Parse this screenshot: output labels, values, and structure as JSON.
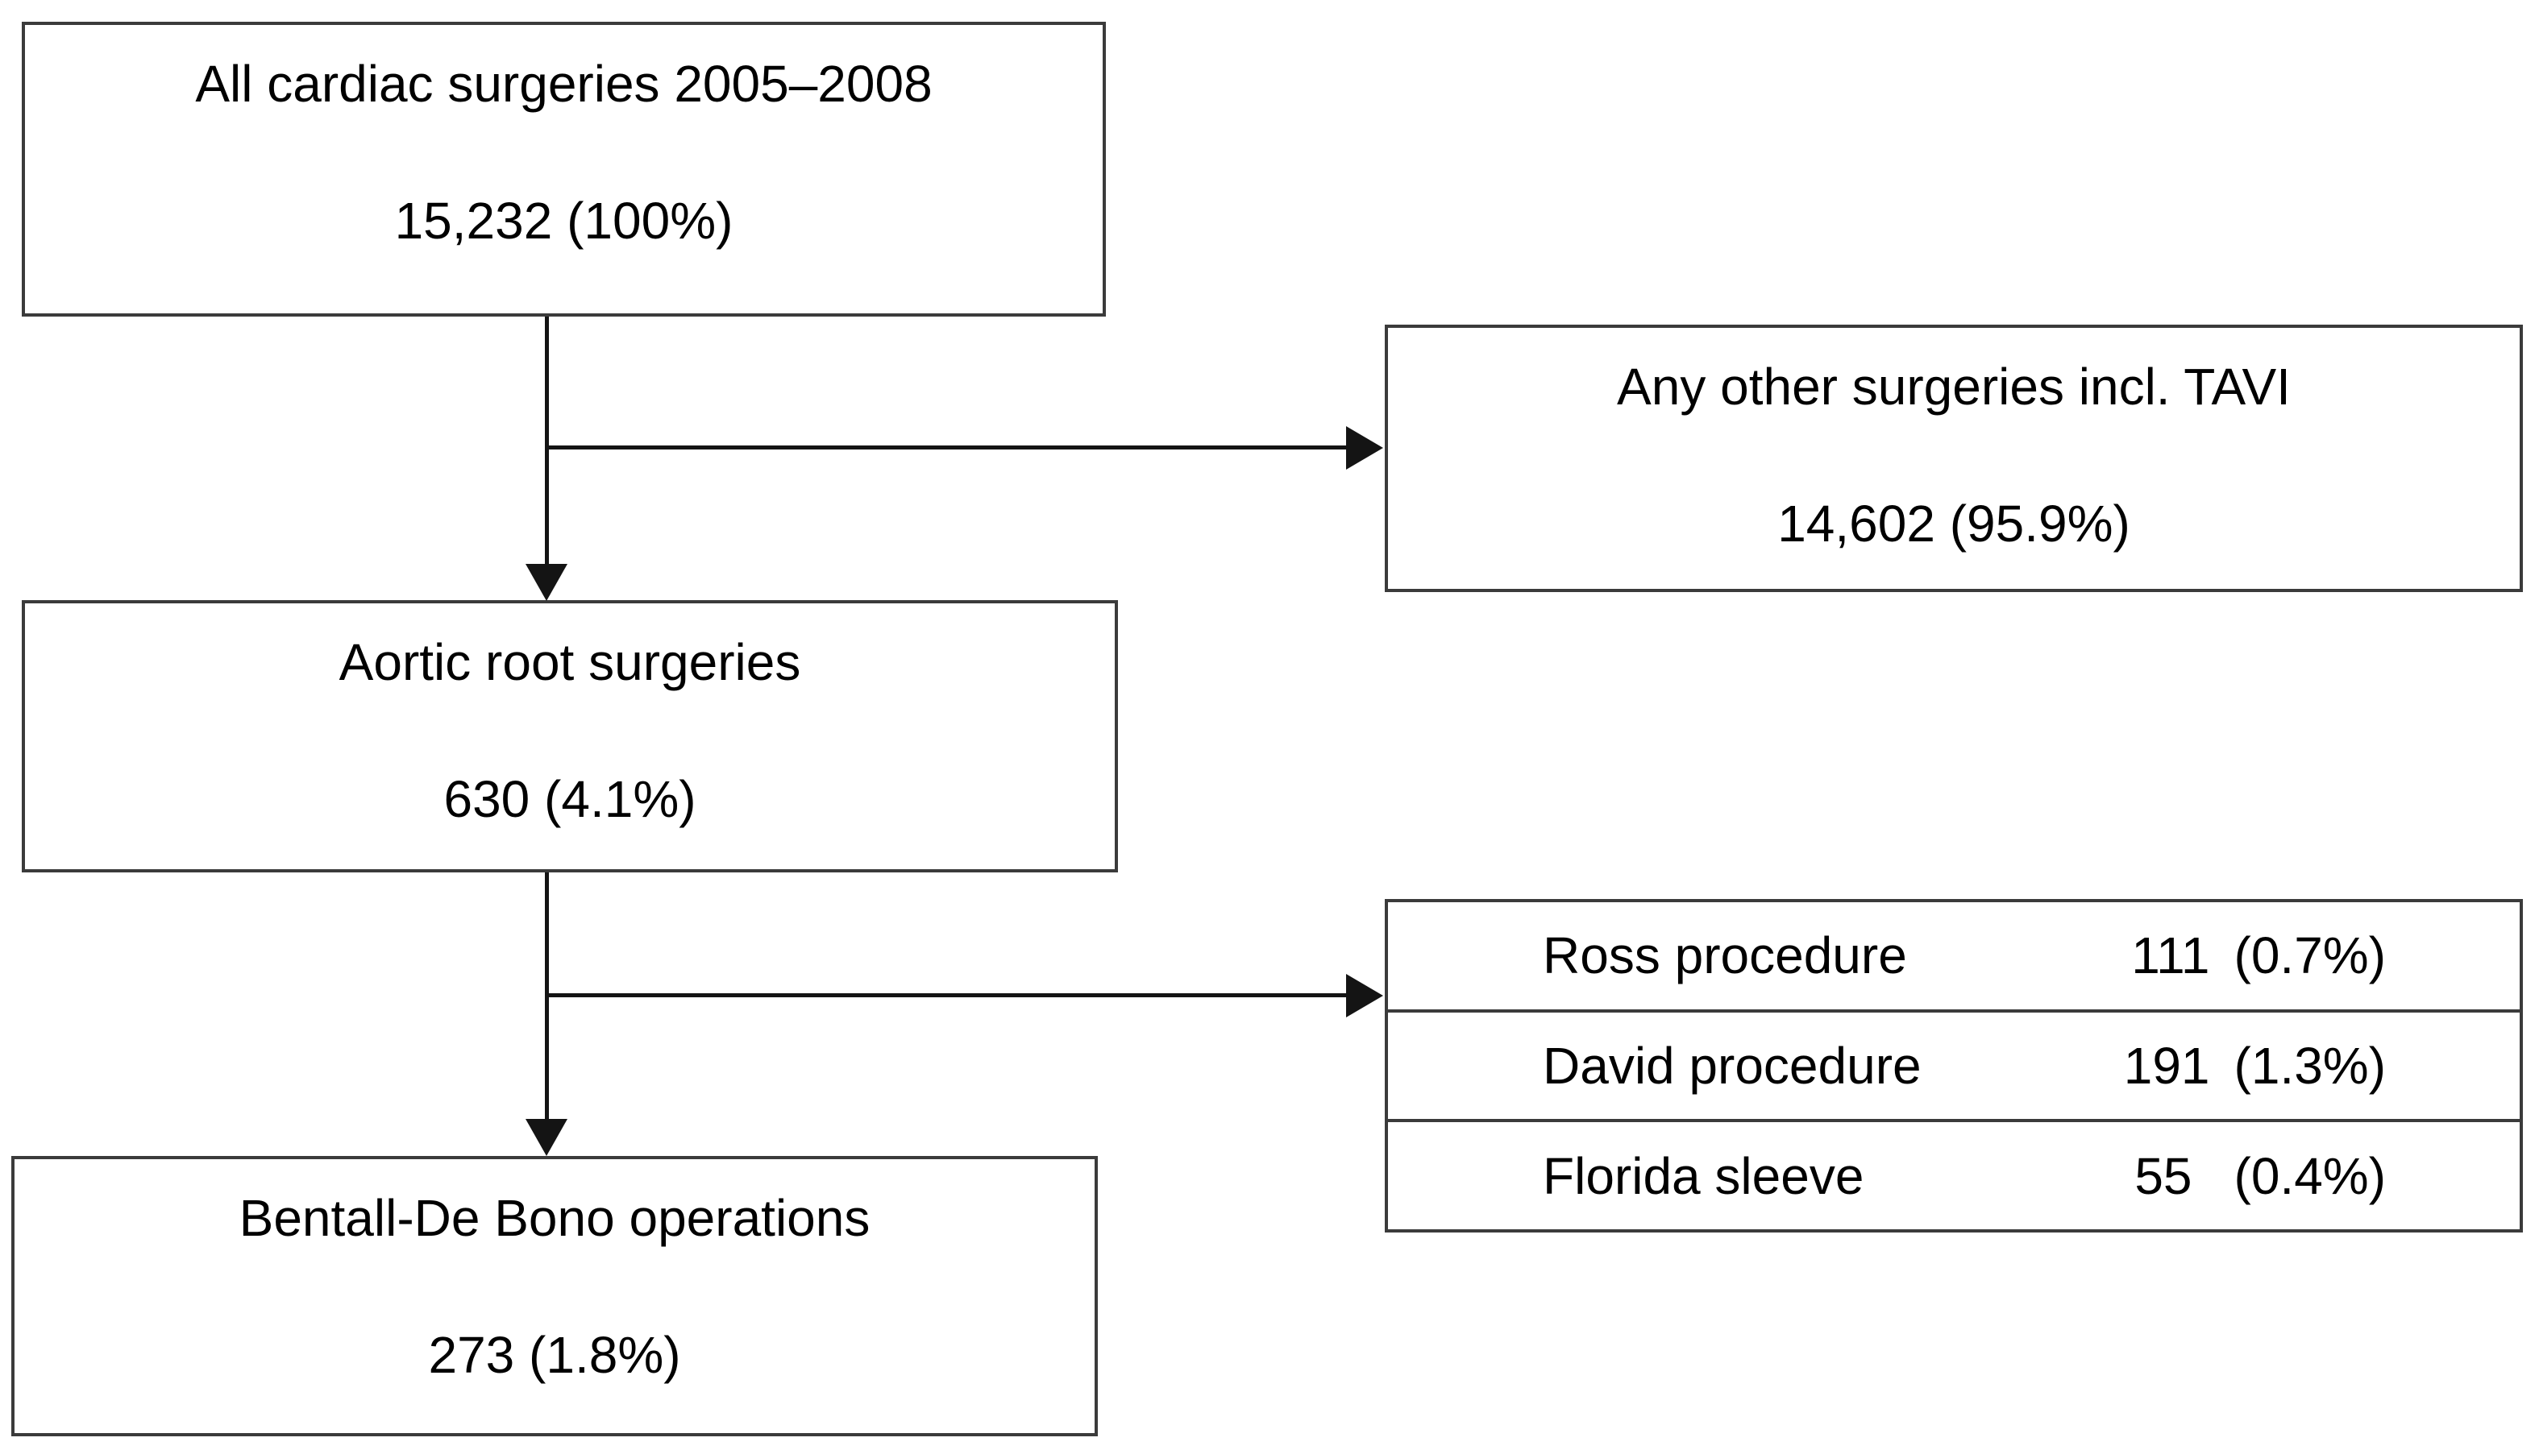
{
  "flow": {
    "boxes": {
      "all_cardiac": {
        "title": "All cardiac surgeries 2005–2008",
        "value": "15,232 (100%)"
      },
      "other_surgeries": {
        "title": "Any other surgeries incl. TAVI",
        "value": "14,602 (95.9%)"
      },
      "aortic_root": {
        "title": "Aortic root surgeries",
        "value": "630 (4.1%)"
      },
      "bentall": {
        "title": "Bentall-De Bono operations",
        "value": "273 (1.8%)"
      }
    },
    "procedures_table": {
      "rows": [
        {
          "label": "Ross procedure",
          "count": "111",
          "percent": "(0.7%)"
        },
        {
          "label": "David procedure",
          "count": "191",
          "percent": "(1.3%)"
        },
        {
          "label": "Florida sleeve",
          "count": "55",
          "percent": "(0.4%)"
        }
      ]
    },
    "colors": {
      "box_border": "#3b3b3b",
      "arrow": "#141414",
      "background": "#ffffff",
      "text": "#000000"
    }
  }
}
